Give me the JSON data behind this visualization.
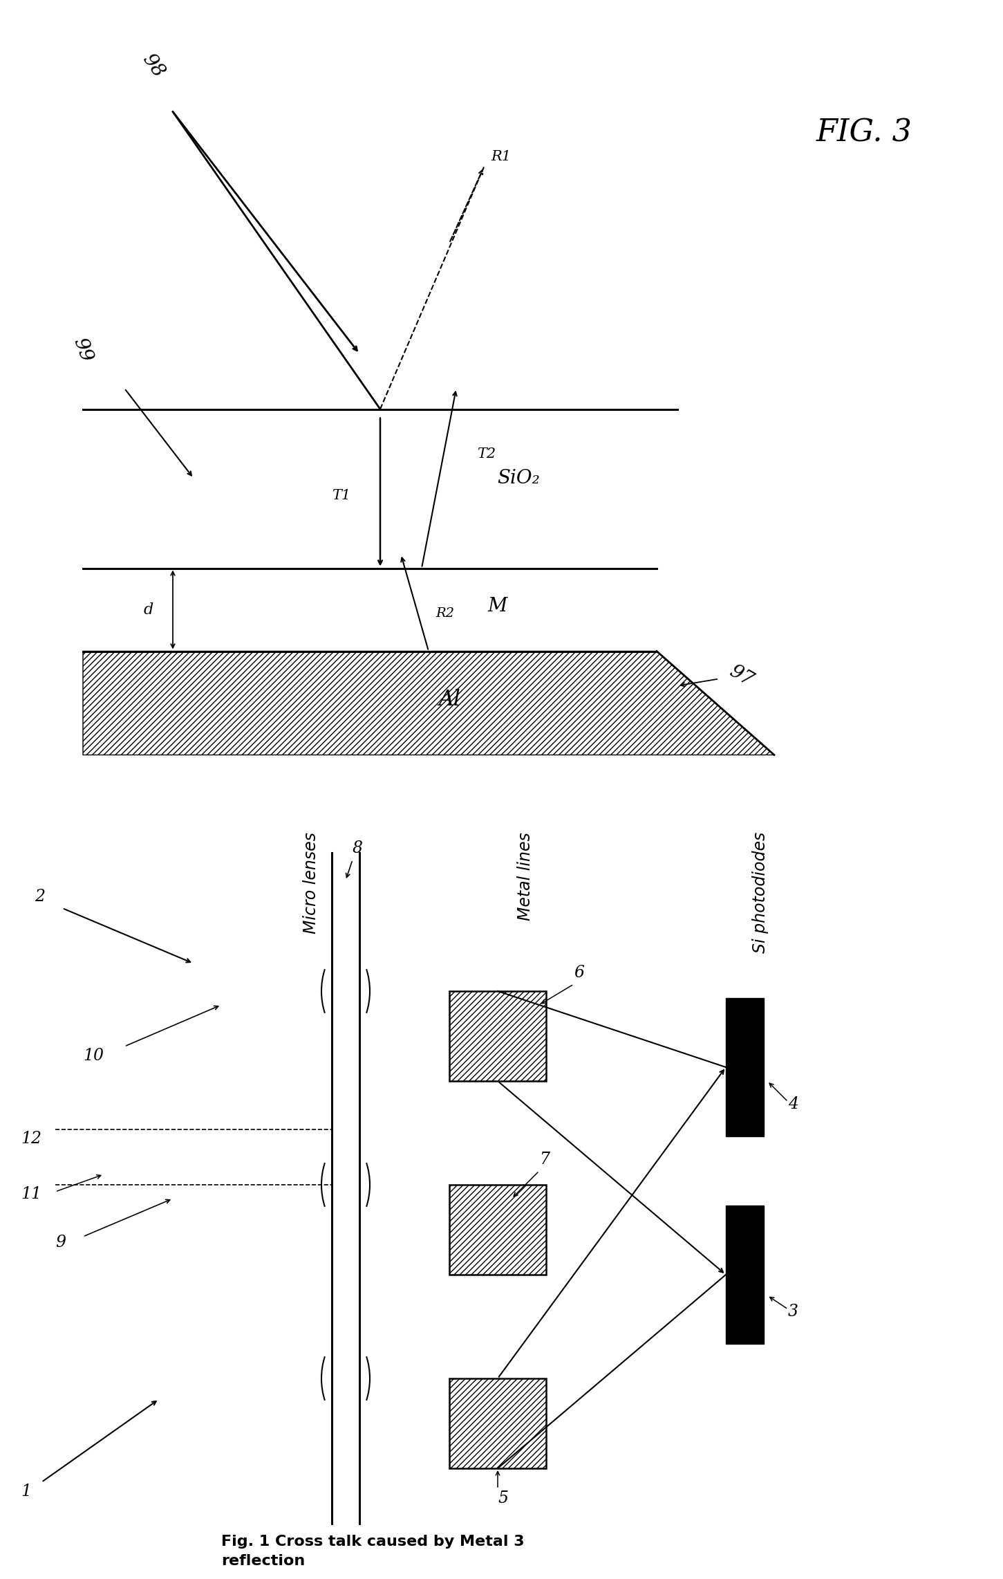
{
  "fig_width": 14.51,
  "fig_height": 22.83,
  "bg_color": "#ffffff",
  "line_color": "#000000",
  "fig3_label": "FIG. 3",
  "fig1_caption": "Fig. 1 Cross talk caused by Metal 3\nreflection",
  "sio2_label": "SiO₂",
  "M_label": "M",
  "al_label": "Al",
  "label_98": "98",
  "label_99": "99",
  "label_97": "97",
  "label_R1": "R1",
  "label_T1": "T1",
  "label_T2": "T2",
  "label_R2": "R2",
  "label_d": "d",
  "label_micro_lenses": "Micro lenses",
  "label_metal_lines": "Metal lines",
  "label_si_photodiodes": "Si photodiodes",
  "ref1": "1",
  "ref2": "2",
  "ref3": "3",
  "ref4": "4",
  "ref5": "5",
  "ref6": "6",
  "ref7": "7",
  "ref8": "8",
  "ref9": "9",
  "ref10": "10",
  "ref11": "11",
  "ref12": "12"
}
